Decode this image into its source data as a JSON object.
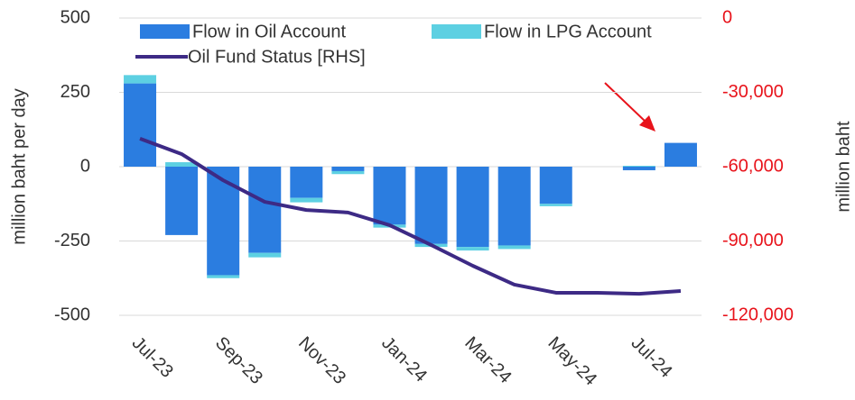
{
  "chart_data": {
    "type": "bar",
    "categories": [
      "Jul-23",
      null,
      "Sep-23",
      null,
      "Nov-23",
      null,
      "Jan-24",
      null,
      "Mar-24",
      null,
      "May-24",
      null,
      "Jul-24",
      null
    ],
    "series": [
      {
        "name": "Flow in Oil Account",
        "color": "#2b7de0",
        "stack": true,
        "values": [
          280,
          -230,
          -365,
          -290,
          -105,
          -15,
          -195,
          -260,
          -270,
          -265,
          -125,
          0,
          -12,
          80
        ]
      },
      {
        "name": "Flow in LPG Account",
        "color": "#5dd0e2",
        "stack": true,
        "values": [
          28,
          15,
          -10,
          -15,
          -15,
          -10,
          -10,
          -10,
          -12,
          -12,
          -8,
          0,
          3,
          0
        ]
      },
      {
        "name": "Oil Fund Status [RHS]",
        "color": "#3d2a85",
        "type": "line",
        "axis": "y2",
        "values": [
          -48700,
          -54900,
          -65500,
          -74200,
          -77500,
          -78500,
          -83600,
          -91600,
          -100000,
          -107600,
          -110900,
          -110900,
          -111300,
          -110200
        ]
      }
    ],
    "ylabel": "million baht per day",
    "y2label": "million baht",
    "ylim": [
      -500,
      500
    ],
    "yticks": [
      -500,
      -250,
      0,
      250,
      500
    ],
    "y2lim": [
      -120000,
      0
    ],
    "y2ticks": [
      {
        "value": -120000,
        "label": "-120,000"
      },
      {
        "value": -90000,
        "label": "-90,000"
      },
      {
        "value": -60000,
        "label": "-60,000"
      },
      {
        "value": -30000,
        "label": "-30,000"
      },
      0
    ],
    "grid": true
  }
}
